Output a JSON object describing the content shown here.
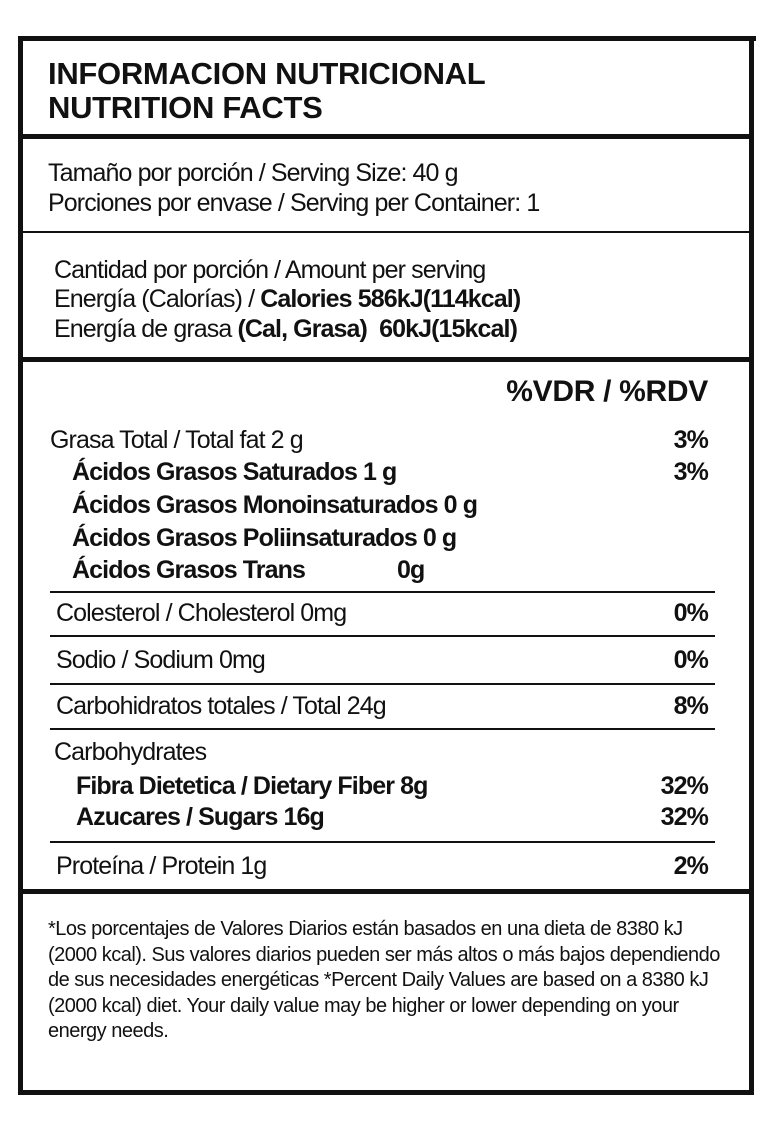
{
  "header": {
    "title_es": "INFORMACION NUTRICIONAL",
    "title_en": "NUTRITION FACTS"
  },
  "serving": {
    "size": "Tamaño por porción / Serving Size: 40 g",
    "per_container": "Porciones por envase / Serving per Container: 1"
  },
  "amount": {
    "heading": "Cantidad por porción / Amount per serving",
    "energy_label": "Energía (Calorías) / ",
    "energy_value": "Calories 586kJ(114kcal)",
    "fat_energy_label": "Energía de grasa ",
    "fat_energy_value": "(Cal, Grasa)  60kJ(15kcal)"
  },
  "dv_header": "%VDR / %RDV",
  "nutrients": {
    "total_fat": {
      "label": "Grasa Total / Total fat 2 g",
      "pct": "3%"
    },
    "saturated": {
      "label": "Ácidos Grasos Saturados 1 g",
      "pct": "3%"
    },
    "mono": {
      "label": "Ácidos Grasos Monoinsaturados 0 g"
    },
    "poly": {
      "label": "Ácidos Grasos Poliinsaturados 0 g"
    },
    "trans": {
      "label": "Ácidos Grasos Trans",
      "value": "0g"
    },
    "cholesterol": {
      "label": "Colesterol / Cholesterol 0mg",
      "pct": "0%"
    },
    "sodium": {
      "label": "Sodio / Sodium 0mg",
      "pct": "0%"
    },
    "carbs": {
      "label": "Carbohidratos totales / Total 24g",
      "pct": "8%"
    },
    "carbs_cont": {
      "label": "Carbohydrates"
    },
    "fiber": {
      "label": "Fibra Dietetica / Dietary Fiber 8g",
      "pct": "32%"
    },
    "sugars": {
      "label": "Azucares / Sugars 16g",
      "pct": "32%"
    },
    "protein": {
      "label": "Proteína / Protein 1g",
      "pct": "2%"
    }
  },
  "footnote": "*Los porcentajes de Valores Diarios están basados en una dieta de 8380 kJ (2000 kcal). Sus valores diarios pueden ser más altos o más bajos dependiendo de sus necesidades energéticas *Percent Daily Values are based on a 8380 kJ (2000 kcal) diet. Your daily value may be higher or lower depending on your energy needs."
}
